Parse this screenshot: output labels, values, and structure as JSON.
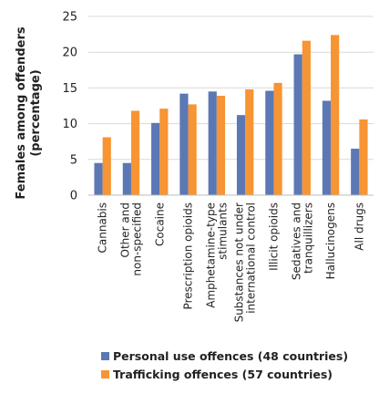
{
  "chart_data": {
    "type": "bar",
    "ylabel_lines": [
      "Females among offenders",
      "(percentage)"
    ],
    "ylim": [
      0,
      25
    ],
    "yticks": [
      0,
      5,
      10,
      15,
      20,
      25
    ],
    "grid": true,
    "legend_position": "bottom-left",
    "categories": [
      [
        "Cannabis"
      ],
      [
        "Other and",
        "non-specified"
      ],
      [
        "Cocaine"
      ],
      [
        "Prescription opioids"
      ],
      [
        "Amphetamine-type",
        "stimulants"
      ],
      [
        "Substances not under",
        "international control"
      ],
      [
        "Illicit opioids"
      ],
      [
        "Sedatives and",
        "tranquillizers"
      ],
      [
        "Hallucinogens"
      ],
      [
        "All drugs"
      ]
    ],
    "series": [
      {
        "name": "Personal use offences (48 countries)",
        "color": "#5b78b4",
        "values": [
          4.5,
          4.5,
          10.1,
          14.2,
          14.5,
          11.2,
          14.6,
          19.7,
          13.2,
          6.5
        ]
      },
      {
        "name": "Trafficking offences (57 countries)",
        "color": "#f79433",
        "values": [
          8.1,
          11.8,
          12.1,
          12.7,
          13.9,
          14.8,
          15.7,
          21.6,
          22.4,
          10.6
        ]
      }
    ]
  }
}
